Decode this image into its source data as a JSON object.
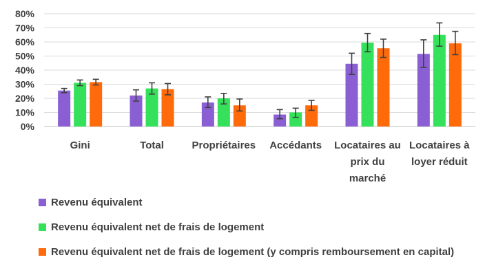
{
  "chart_data": {
    "type": "bar",
    "categories": [
      [
        "Gini"
      ],
      [
        "Total"
      ],
      [
        "Propriétaires"
      ],
      [
        "Accédants"
      ],
      [
        "Locataires au",
        "prix du",
        "marché"
      ],
      [
        "Locataires à",
        "loyer réduit"
      ]
    ],
    "series": [
      {
        "name": "Revenu équivalent",
        "color": "#8a5fd3",
        "values": [
          25.5,
          22,
          17,
          8.5,
          44.5,
          51.5
        ],
        "error_low": [
          24,
          18,
          13.5,
          5.5,
          37,
          42
        ],
        "error_high": [
          27,
          26,
          21,
          12,
          52,
          61.5
        ]
      },
      {
        "name": "Revenu équivalent net de frais de logement",
        "color": "#35e05a",
        "values": [
          31,
          27,
          20,
          10,
          59.5,
          65
        ],
        "error_low": [
          29,
          23,
          16,
          6.5,
          53,
          57
        ],
        "error_high": [
          33,
          31,
          23.5,
          13,
          66,
          73.5
        ]
      },
      {
        "name": "Revenu équivalent net de frais de logement (y compris remboursement en capital)",
        "color": "#ff6a0a",
        "values": [
          31.5,
          26.5,
          15,
          15,
          55.5,
          59
        ],
        "error_low": [
          29.5,
          22.5,
          11,
          11.5,
          49,
          51
        ],
        "error_high": [
          33.5,
          30.5,
          19.5,
          18.5,
          62,
          67.5
        ]
      }
    ],
    "y_ticks": [
      "0%",
      "10%",
      "20%",
      "30%",
      "40%",
      "50%",
      "60%",
      "70%",
      "80%"
    ],
    "ylim": [
      0,
      80
    ],
    "grid": true,
    "legend_position": "bottom-left"
  }
}
